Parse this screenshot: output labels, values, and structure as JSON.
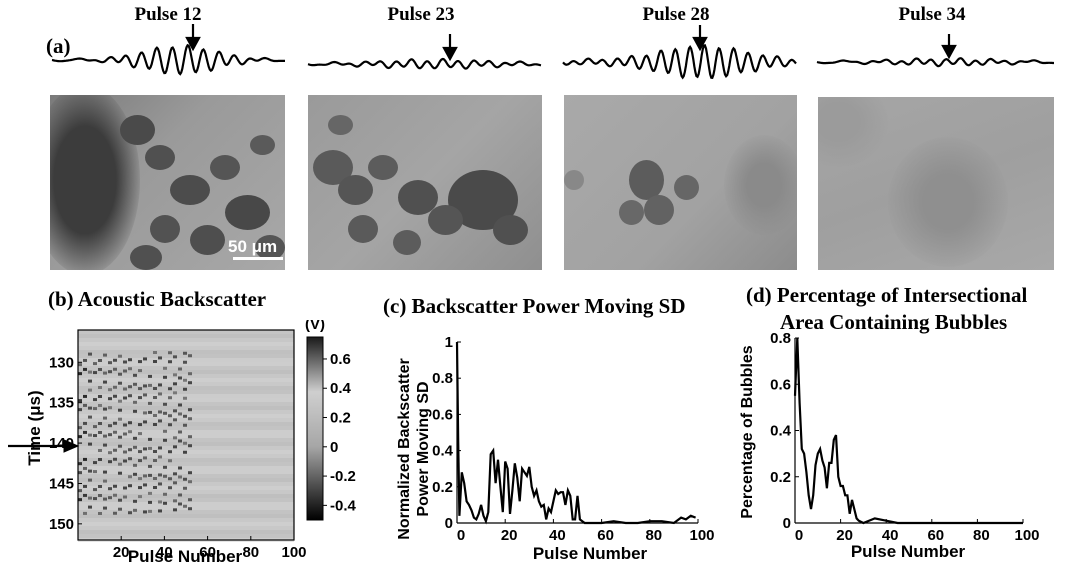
{
  "panel_a": {
    "label": "(a)",
    "frames": [
      {
        "title": "Pulse 12"
      },
      {
        "title": "Pulse 23"
      },
      {
        "title": "Pulse 28"
      },
      {
        "title": "Pulse 34"
      }
    ],
    "scale_bar_label": "50 μm"
  },
  "panel_b": {
    "title": "(b) Acoustic Backscatter"
  },
  "panel_c": {
    "title": "(c) Backscatter Power Moving SD"
  },
  "panel_d": {
    "title_line1": "(d) Percentage of Intersectional",
    "title_line2": "Area Containing Bubbles"
  },
  "chart_data": [
    {
      "type": "heatmap",
      "xlabel": "Pulse Number",
      "ylabel": "Time (μs)",
      "xlim": [
        0,
        100
      ],
      "ylim": [
        126,
        152
      ],
      "x_ticks": [
        "20",
        "40",
        "60",
        "80",
        "100"
      ],
      "y_ticks": [
        "130",
        "135",
        "140",
        "145",
        "150"
      ],
      "colorbar_label": "(V)",
      "colorbar_ticks": [
        "0.6",
        "0.4",
        "0.2",
        "0",
        "-0.2",
        "-0.4"
      ],
      "colorbar_range": [
        -0.5,
        0.75
      ],
      "colormap": "gray",
      "arrow_time": 142
    },
    {
      "type": "line",
      "xlabel": "Pulse Number",
      "ylabel": "Normalized Backscatter Power Moving SD",
      "xlim": [
        0,
        100
      ],
      "ylim": [
        0,
        1
      ],
      "x_ticks": [
        "0",
        "20",
        "40",
        "60",
        "80",
        "100"
      ],
      "y_ticks": [
        "0",
        "0.2",
        "0.4",
        "0.6",
        "0.8",
        "1"
      ],
      "x": [
        0,
        0.5,
        1,
        2,
        3,
        4,
        5,
        6,
        7,
        8,
        9,
        10,
        11,
        12,
        13,
        14,
        15,
        16,
        17,
        18,
        19,
        20,
        21,
        22,
        23,
        24,
        25,
        26,
        27,
        28,
        29,
        30,
        31,
        32,
        33,
        34,
        35,
        36,
        37,
        38,
        39,
        40,
        41,
        42,
        43,
        44,
        45,
        46,
        47,
        48,
        49,
        50,
        51,
        52,
        53,
        54,
        55,
        60,
        65,
        70,
        75,
        80,
        85,
        90,
        93,
        95,
        97,
        99
      ],
      "y": [
        1.0,
        0.45,
        0.04,
        0.28,
        0.22,
        0.12,
        0.1,
        0.07,
        0.03,
        0.02,
        0.05,
        0.1,
        0.04,
        0.01,
        0.06,
        0.38,
        0.4,
        0.22,
        0.35,
        0.2,
        0.06,
        0.34,
        0.3,
        0.05,
        0.18,
        0.33,
        0.25,
        0.12,
        0.3,
        0.28,
        0.26,
        0.31,
        0.2,
        0.15,
        0.18,
        0.12,
        0.09,
        0.1,
        0.02,
        0.08,
        0.06,
        0.12,
        0.18,
        0.16,
        0.17,
        0.17,
        0.1,
        0.18,
        0.15,
        0.02,
        0.02,
        0.15,
        0.02,
        0.01,
        0.0,
        0.0,
        0.0,
        0.0,
        0.01,
        0.0,
        0.0,
        0.01,
        0.01,
        0.0,
        0.03,
        0.02,
        0.04,
        0.03
      ]
    },
    {
      "type": "line",
      "xlabel": "Pulse Number",
      "ylabel": "Percentage of Bubbles",
      "xlim": [
        0,
        100
      ],
      "ylim": [
        0,
        0.8
      ],
      "x_ticks": [
        "0",
        "20",
        "40",
        "60",
        "80",
        "100"
      ],
      "y_ticks": [
        "0",
        "0.2",
        "0.4",
        "0.6",
        "0.8"
      ],
      "x": [
        0,
        1,
        2,
        3,
        4,
        5,
        6,
        7,
        8,
        9,
        10,
        11,
        12,
        13,
        14,
        15,
        16,
        17,
        18,
        19,
        20,
        21,
        22,
        23,
        24,
        25,
        26,
        27,
        28,
        30,
        35,
        40,
        45,
        50,
        60,
        70,
        80,
        90,
        100
      ],
      "y": [
        0.55,
        0.8,
        0.52,
        0.32,
        0.3,
        0.22,
        0.12,
        0.06,
        0.12,
        0.25,
        0.3,
        0.32,
        0.27,
        0.24,
        0.15,
        0.26,
        0.26,
        0.36,
        0.38,
        0.2,
        0.16,
        0.16,
        0.12,
        0.12,
        0.04,
        0.1,
        0.06,
        0.02,
        0.01,
        0.0,
        0.02,
        0.01,
        0.0,
        0.0,
        0.0,
        0.0,
        0.0,
        0.0,
        0.0
      ]
    }
  ]
}
